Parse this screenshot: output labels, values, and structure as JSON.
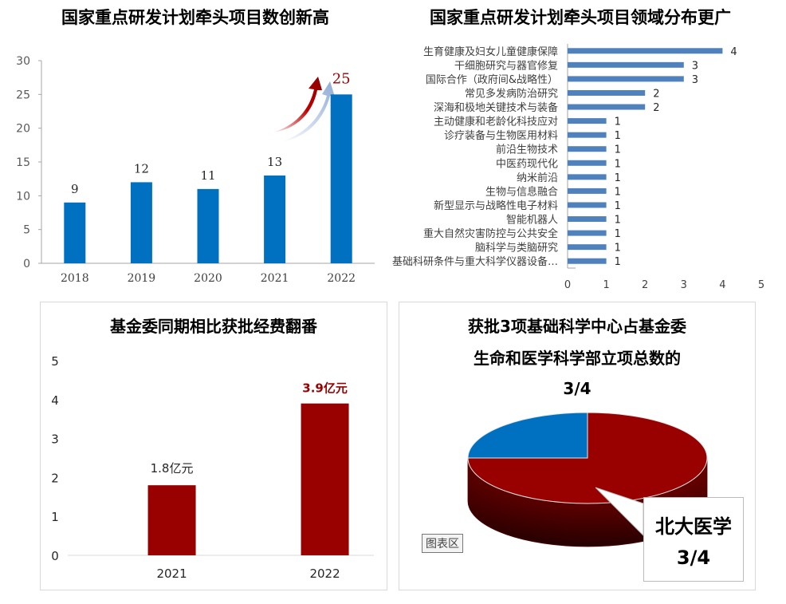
{
  "colors": {
    "blue": "#0070c0",
    "darkred": "#990000",
    "hbar": "#4f81bd",
    "arrow_red": "#c00000",
    "arrow_blue": "#9bb7d9"
  },
  "chart_data": [
    {
      "type": "bar",
      "title": "国家重点研发计划牵头项目数创新高",
      "categories": [
        "2018",
        "2019",
        "2020",
        "2021",
        "2022"
      ],
      "values": [
        9,
        12,
        11,
        13,
        25
      ],
      "data_labels": [
        "9",
        "12",
        "11",
        "13",
        "25"
      ],
      "ylim": [
        0,
        30
      ],
      "yticks": [
        "0",
        "5",
        "10",
        "15",
        "20",
        "25",
        "30"
      ],
      "grid": false,
      "highlight_color": "#990000"
    },
    {
      "type": "bar",
      "orientation": "horizontal",
      "title": "国家重点研发计划牵头项目领域分布更广",
      "categories": [
        "生育健康及妇女儿童健康保障",
        "干细胞研究与器官修复",
        "国际合作（政府间&战略性）",
        "常见多发病防治研究",
        "深海和极地关键技术与装备",
        "主动健康和老龄化科技应对",
        "诊疗装备与生物医用材料",
        "前沿生物技术",
        "中医药现代化",
        "纳米前沿",
        "生物与信息融合",
        "新型显示与战略性电子材料",
        "智能机器人",
        "重大自然灾害防控与公共安全",
        "脑科学与类脑研究",
        "基础科研条件与重大科学仪器设备…"
      ],
      "values": [
        4,
        3,
        3,
        2,
        2,
        1,
        1,
        1,
        1,
        1,
        1,
        1,
        1,
        1,
        1,
        1
      ],
      "data_labels": [
        "4",
        "3",
        "3",
        "2",
        "2",
        "1",
        "1",
        "1",
        "1",
        "1",
        "1",
        "1",
        "1",
        "1",
        "1",
        "1"
      ],
      "xlim": [
        0,
        5
      ],
      "xticks": [
        "0",
        "1",
        "2",
        "3",
        "4",
        "5"
      ],
      "grid": false
    },
    {
      "type": "bar",
      "title": "基金委同期相比获批经费翻番",
      "categories": [
        "2021",
        "2022"
      ],
      "values": [
        1.8,
        3.9
      ],
      "data_labels": [
        "1.8亿元",
        "3.9亿元"
      ],
      "ylim": [
        0,
        5
      ],
      "yticks": [
        "0",
        "1",
        "2",
        "3",
        "4",
        "5"
      ],
      "grid": false
    },
    {
      "type": "pie",
      "title_lines": [
        "获批3项基础科学中心占基金委",
        "生命和医学科学部立项总数的",
        "3/4"
      ],
      "slices": [
        {
          "value": 0.75,
          "color": "#990000"
        },
        {
          "value": 0.25,
          "color": "#0070c0"
        }
      ],
      "callout_lines": [
        "北大医学",
        "3/4"
      ],
      "tooltip": "图表区"
    }
  ]
}
